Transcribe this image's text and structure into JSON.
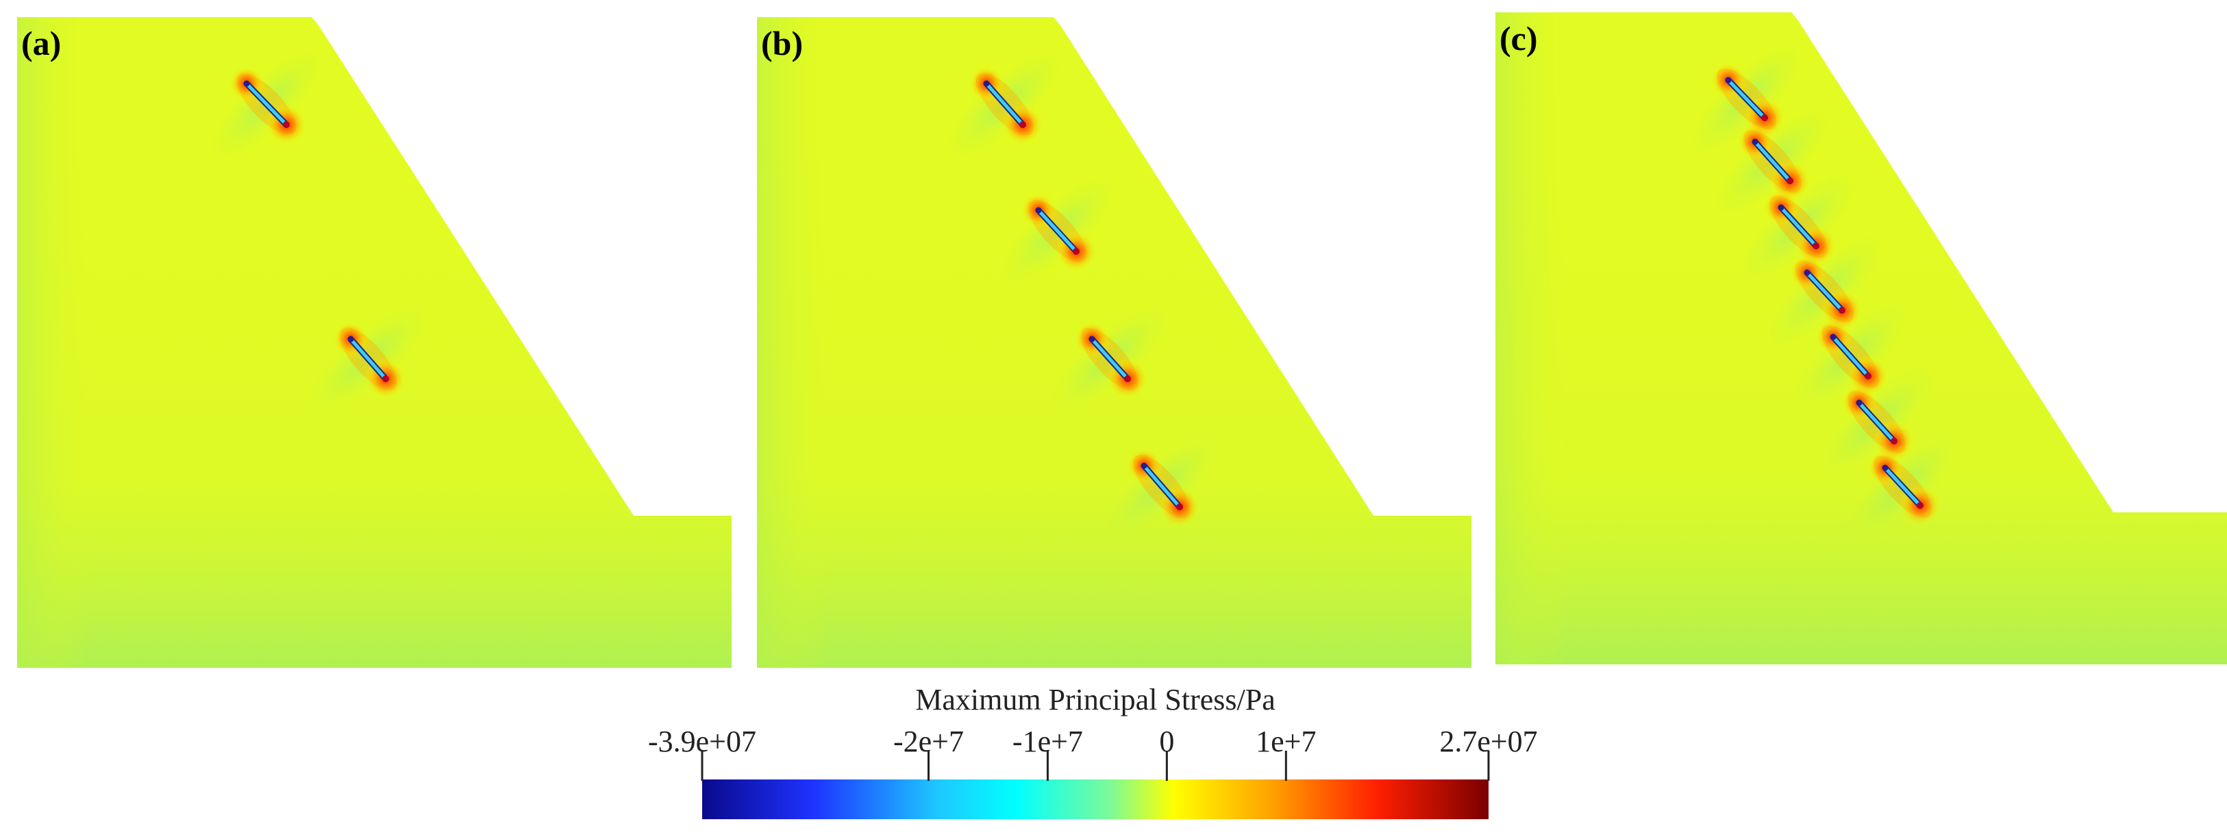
{
  "panels": [
    {
      "label": "(a)",
      "crack_count": 2
    },
    {
      "label": "(b)",
      "crack_count": 4
    },
    {
      "label": "(c)",
      "crack_count": 7
    }
  ],
  "colorbar": {
    "title": "Maximum Principal Stress/Pa",
    "min_label": "-3.9e+07",
    "max_label": "2.7e+07",
    "min": -39000000,
    "max": 27000000,
    "ticks": [
      {
        "value": -39000000,
        "label": "-3.9e+07"
      },
      {
        "value": -20000000,
        "label": "-2e+7"
      },
      {
        "value": -10000000,
        "label": "-1e+7"
      },
      {
        "value": 0,
        "label": "0"
      },
      {
        "value": 10000000,
        "label": "1e+7"
      },
      {
        "value": 27000000,
        "label": "2.7e+07"
      }
    ],
    "colors": [
      "#0a0a8c",
      "#1e32ff",
      "#1ec8ff",
      "#00ffff",
      "#7dfa96",
      "#ffff00",
      "#ffa500",
      "#ff1e00",
      "#7a0000"
    ]
  },
  "colors": {
    "field": "#e2fb22",
    "field_low": "#a9f052",
    "crack": "#47c8ef",
    "tip_hot": "#ff2a00",
    "tip_dark": "#2a1a8a"
  }
}
